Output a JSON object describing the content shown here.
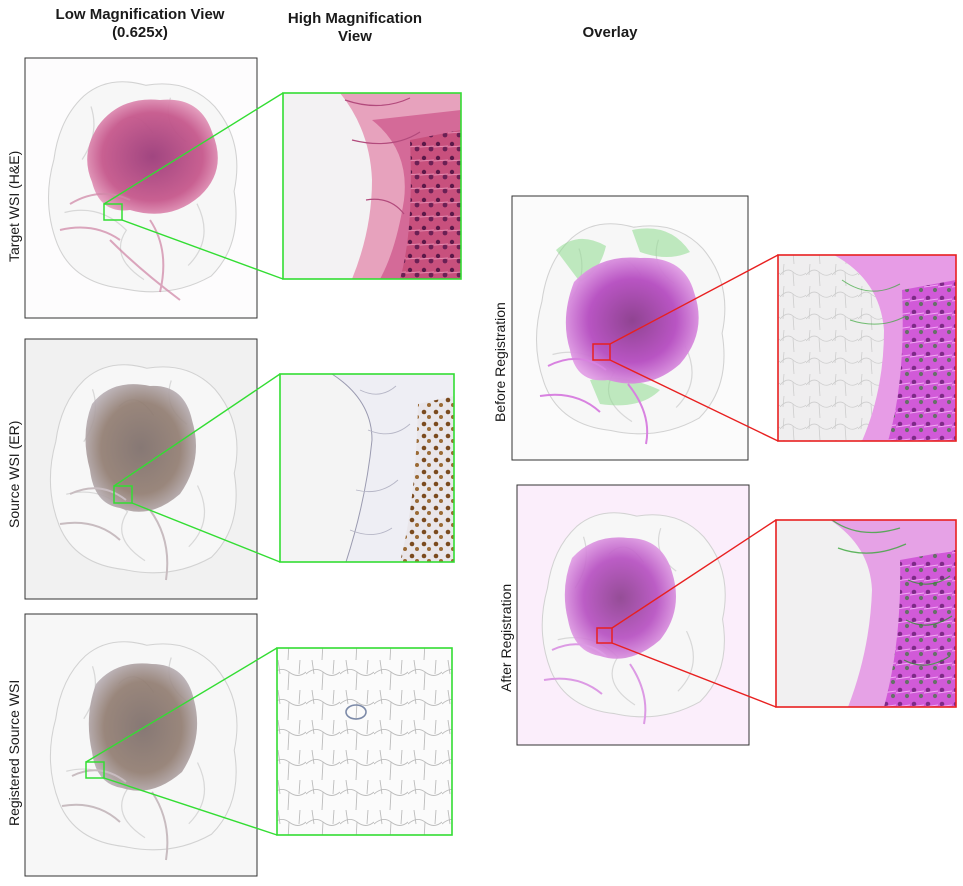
{
  "headers": {
    "low_mag": "Low Magnification View (0.625x)",
    "high_mag": "High Magnification View",
    "overlay": "Overlay"
  },
  "rows": {
    "target": "Target WSI (H&E)",
    "source": "Source WSI (ER)",
    "registered": "Registered Source WSI"
  },
  "overlay_rows": {
    "before": "Before Registration",
    "after": "After Registration"
  },
  "colors": {
    "roi_low": "#33dd33",
    "roi_overlay": "#e82020",
    "he_tissue": "#c2457d",
    "er_tissue": "#8a7060",
    "overlay_tissue": "#c84dd0"
  }
}
